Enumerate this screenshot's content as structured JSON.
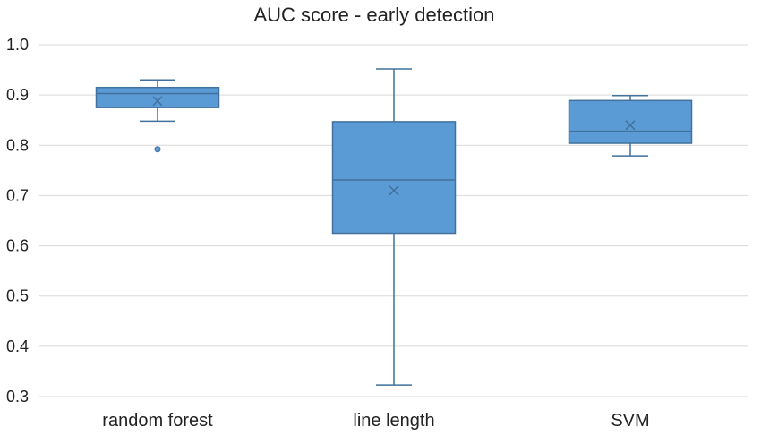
{
  "chart_data": {
    "type": "box",
    "title": "AUC score - early detection",
    "xlabel": "",
    "ylabel": "",
    "ylim": [
      0.3,
      1.0
    ],
    "yticks": [
      "0.3",
      "0.4",
      "0.5",
      "0.6",
      "0.7",
      "0.8",
      "0.9",
      "1.0"
    ],
    "grid": true,
    "box_color": "#5B9BD5",
    "box_edge_color": "#41719C",
    "grid_color": "#D9D9D9",
    "categories": [
      "random forest",
      "line length",
      "SVM"
    ],
    "boxes": [
      {
        "category": "random forest",
        "whisker_low": 0.848,
        "q1": 0.875,
        "median": 0.903,
        "q3": 0.915,
        "whisker_high": 0.93,
        "mean": 0.888,
        "outliers": [
          0.792
        ]
      },
      {
        "category": "line length",
        "whisker_low": 0.323,
        "q1": 0.625,
        "median": 0.731,
        "q3": 0.847,
        "whisker_high": 0.952,
        "mean": 0.71,
        "outliers": []
      },
      {
        "category": "SVM",
        "whisker_low": 0.779,
        "q1": 0.804,
        "median": 0.828,
        "q3": 0.889,
        "whisker_high": 0.899,
        "mean": 0.84,
        "outliers": []
      }
    ]
  }
}
